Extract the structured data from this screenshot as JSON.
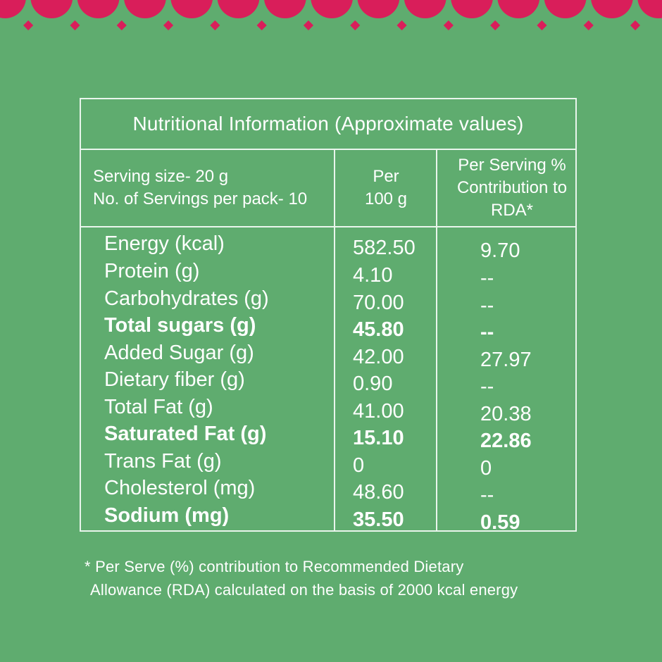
{
  "colors": {
    "background": "#5fac6f",
    "accent": "#d91e5a",
    "border": "#e9f5ec",
    "text": "#ffffff"
  },
  "title": "Nutritional Information (Approximate values)",
  "header": {
    "serving_size": "Serving size- 20 g",
    "servings_per_pack": "No. of Servings per pack- 10",
    "per100_line1": "Per",
    "per100_line2": "100 g",
    "rda_line1": "Per Serving %",
    "rda_line2": "Contribution to",
    "rda_line3": "RDA*"
  },
  "rows": [
    {
      "name": "Energy (kcal)",
      "per100": "582.50",
      "rda": "9.70",
      "bold": false
    },
    {
      "name": "Protein (g)",
      "per100": "4.10",
      "rda": "--",
      "bold": false
    },
    {
      "name": "Carbohydrates (g)",
      "per100": "70.00",
      "rda": "--",
      "bold": false
    },
    {
      "name": "Total sugars (g)",
      "per100": "45.80",
      "rda": "--",
      "bold": true
    },
    {
      "name": "Added Sugar (g)",
      "per100": "42.00",
      "rda": "27.97",
      "bold": false
    },
    {
      "name": "Dietary fiber (g)",
      "per100": "0.90",
      "rda": "--",
      "bold": false
    },
    {
      "name": "Total Fat (g)",
      "per100": "41.00",
      "rda": "20.38",
      "bold": false
    },
    {
      "name": "Saturated Fat (g)",
      "per100": "15.10",
      "rda": "22.86",
      "bold": true
    },
    {
      "name": "Trans Fat (g)",
      "per100": "0",
      "rda": "0",
      "bold": false
    },
    {
      "name": "Cholesterol (mg)",
      "per100": "48.60",
      "rda": "--",
      "bold": false
    },
    {
      "name": "Sodium (mg)",
      "per100": "35.50",
      "rda": "0.59",
      "bold": true
    }
  ],
  "footnote": {
    "line1": "* Per Serve (%) contribution to Recommended Dietary",
    "line2": "Allowance (RDA) calculated on the basis of 2000 kcal energy"
  }
}
